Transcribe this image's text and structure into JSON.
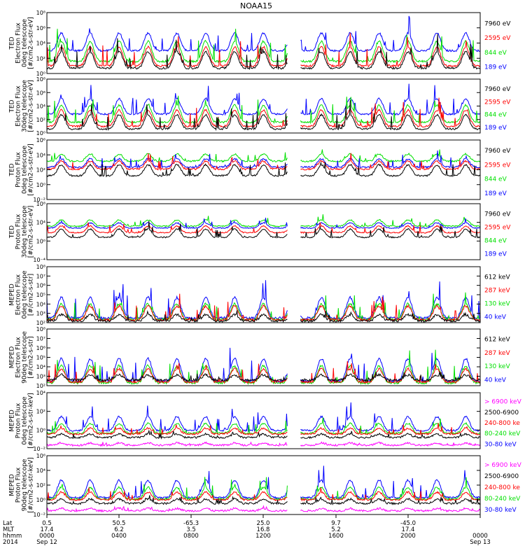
{
  "title": "NOAA15",
  "colors": {
    "black": "#000000",
    "red": "#ff0000",
    "green": "#00e000",
    "blue": "#0000ff",
    "magenta": "#ff00ff"
  },
  "x_axis": {
    "row_labels": [
      "Lat",
      "MLT",
      "hhmm",
      "2014"
    ],
    "ticks": [
      {
        "lat": "0.5",
        "mlt": "17.4",
        "time": "0000",
        "date": "Sep 12"
      },
      {
        "lat": "50.5",
        "mlt": "6.2",
        "time": "0400",
        "date": ""
      },
      {
        "lat": "-65.3",
        "mlt": "3.5",
        "time": "0800",
        "date": ""
      },
      {
        "lat": "25.0",
        "mlt": "16.8",
        "time": "1200",
        "date": ""
      },
      {
        "lat": "9.7",
        "mlt": "5.2",
        "time": "1600",
        "date": ""
      },
      {
        "lat": "-45.0",
        "mlt": "17.4",
        "time": "2000",
        "date": ""
      },
      {
        "lat": "",
        "mlt": "",
        "time": "0000",
        "date": "Sep 13"
      }
    ]
  },
  "chart_data": [
    {
      "type": "line",
      "ylabel": [
        "TED",
        "Electron Flux",
        "0deg telescope",
        "[#/cm2-s-str-eV]"
      ],
      "ylim": [
        1,
        100000000
      ],
      "log": true,
      "ylim_exponents": [
        0,
        8
      ],
      "yticks": [
        "10⁸",
        "10⁶",
        "10⁴",
        "10²",
        "10⁰"
      ],
      "legend": [
        {
          "label": "7960 eV",
          "color": "black"
        },
        {
          "label": "2595 eV",
          "color": "red"
        },
        {
          "label": "844 eV",
          "color": "green"
        },
        {
          "label": "189 eV",
          "color": "blue"
        }
      ],
      "baselines": [
        {
          "color": "blue",
          "level": 3.0
        },
        {
          "color": "green",
          "level": 1.6
        },
        {
          "color": "red",
          "level": 1.0
        },
        {
          "color": "black",
          "level": 0.7
        }
      ],
      "peaks": [
        {
          "color": "blue",
          "level": 7.2
        },
        {
          "color": "green",
          "level": 6.4
        },
        {
          "color": "red",
          "level": 5.5
        },
        {
          "color": "black",
          "level": 4.6
        }
      ]
    },
    {
      "type": "line",
      "ylabel": [
        "TED",
        "Electron Flux",
        "30deg telescope",
        "[#/cm2-s-str-eV]"
      ],
      "ylim": [
        1,
        100000000
      ],
      "log": true,
      "ylim_exponents": [
        0,
        8
      ],
      "yticks": [
        "10⁸",
        "10⁶",
        "10⁴",
        "10²",
        "10⁰"
      ],
      "legend": [
        {
          "label": "7960 eV",
          "color": "black"
        },
        {
          "label": "2595 eV",
          "color": "red"
        },
        {
          "label": "844 eV",
          "color": "green"
        },
        {
          "label": "189 eV",
          "color": "blue"
        }
      ],
      "baselines": [
        {
          "color": "blue",
          "level": 2.8
        },
        {
          "color": "green",
          "level": 1.6
        },
        {
          "color": "red",
          "level": 1.0
        },
        {
          "color": "black",
          "level": 0.6
        }
      ],
      "peaks": [
        {
          "color": "blue",
          "level": 7.0
        },
        {
          "color": "green",
          "level": 6.2
        },
        {
          "color": "red",
          "level": 5.4
        },
        {
          "color": "black",
          "level": 4.4
        }
      ]
    },
    {
      "type": "line",
      "ylabel": [
        "TED",
        "Proton Flux",
        "0deg telescope",
        "[#/cm2-s-str-eV]"
      ],
      "ylim": [
        0.001,
        1000000
      ],
      "log": true,
      "ylim_exponents": [
        -3,
        6
      ],
      "yticks": [
        "10⁶",
        "10⁴",
        "10²",
        "10⁰",
        "10⁻²"
      ],
      "legend": [
        {
          "label": "7960 eV",
          "color": "black"
        },
        {
          "label": "2595 eV",
          "color": "red"
        },
        {
          "label": "844 eV",
          "color": "green"
        },
        {
          "label": "189 eV",
          "color": "blue"
        }
      ],
      "baselines": [
        {
          "color": "green",
          "level": 2.8
        },
        {
          "color": "blue",
          "level": 1.9
        },
        {
          "color": "red",
          "level": 1.6
        },
        {
          "color": "black",
          "level": 0.6
        }
      ],
      "peaks": [
        {
          "color": "green",
          "level": 4.8
        },
        {
          "color": "blue",
          "level": 4.2
        },
        {
          "color": "red",
          "level": 3.8
        },
        {
          "color": "black",
          "level": 3.6
        }
      ]
    },
    {
      "type": "line",
      "ylabel": [
        "TED",
        "Proton Flux",
        "30deg telescope",
        "[#/cm2-s-str-eV]"
      ],
      "ylim": [
        0.0001,
        100000000
      ],
      "log": true,
      "ylim_exponents": [
        -4,
        8
      ],
      "yticks": [
        "10⁸",
        "10⁴",
        "10⁰",
        "10⁻⁴"
      ],
      "legend": [
        {
          "label": "7960 eV",
          "color": "black"
        },
        {
          "label": "2595 eV",
          "color": "red"
        },
        {
          "label": "844 eV",
          "color": "green"
        },
        {
          "label": "189 eV",
          "color": "blue"
        }
      ],
      "baselines": [
        {
          "color": "green",
          "level": 3.2
        },
        {
          "color": "blue",
          "level": 2.8
        },
        {
          "color": "red",
          "level": 1.8
        },
        {
          "color": "black",
          "level": 0.8
        }
      ],
      "peaks": [
        {
          "color": "green",
          "level": 5.6
        },
        {
          "color": "blue",
          "level": 4.8
        },
        {
          "color": "red",
          "level": 4.4
        },
        {
          "color": "black",
          "level": 4.0
        }
      ]
    },
    {
      "type": "line",
      "ylabel": [
        "MEPED",
        "Electron Flux",
        "0deg telescope",
        "[#/cm2-s-str]"
      ],
      "ylim": [
        100,
        100000000
      ],
      "log": true,
      "ylim_exponents": [
        2,
        8
      ],
      "yticks": [
        "10⁸",
        "10⁷",
        "10⁶",
        "10⁵",
        "10⁴",
        "10³",
        "10²"
      ],
      "legend": [
        {
          "label": "612 keV",
          "color": "black"
        },
        {
          "label": "287 keV",
          "color": "red"
        },
        {
          "label": "130 keV",
          "color": "green"
        },
        {
          "label": "40 keV",
          "color": "blue"
        }
      ],
      "baselines": [
        {
          "color": "blue",
          "level": 2.5
        },
        {
          "color": "green",
          "level": 2.35
        },
        {
          "color": "red",
          "level": 2.3
        },
        {
          "color": "black",
          "level": 2.2
        }
      ],
      "peaks": [
        {
          "color": "blue",
          "level": 6.5
        },
        {
          "color": "green",
          "level": 5.4
        },
        {
          "color": "red",
          "level": 5.0
        },
        {
          "color": "black",
          "level": 3.4
        }
      ]
    },
    {
      "type": "line",
      "ylabel": [
        "MEPED",
        "Electron Flux",
        "90deg telescope",
        "[#/cm2-s-str]"
      ],
      "ylim": [
        100,
        100000000
      ],
      "log": true,
      "ylim_exponents": [
        2,
        8
      ],
      "yticks": [
        "10⁸",
        "10⁷",
        "10⁶",
        "10⁵",
        "10⁴",
        "10³",
        "10²"
      ],
      "legend": [
        {
          "label": "612 keV",
          "color": "black"
        },
        {
          "label": "287 keV",
          "color": "red"
        },
        {
          "label": "130 keV",
          "color": "green"
        },
        {
          "label": "40 keV",
          "color": "blue"
        }
      ],
      "baselines": [
        {
          "color": "blue",
          "level": 2.5
        },
        {
          "color": "green",
          "level": 2.3
        },
        {
          "color": "red",
          "level": 2.4
        },
        {
          "color": "black",
          "level": 2.6
        }
      ],
      "peaks": [
        {
          "color": "blue",
          "level": 6.8
        },
        {
          "color": "green",
          "level": 5.6
        },
        {
          "color": "red",
          "level": 4.9
        },
        {
          "color": "black",
          "level": 3.6
        }
      ]
    },
    {
      "type": "line",
      "ylabel": [
        "MEPED",
        "Proton Flux",
        "0deg telescope",
        "[#/cm2-s-str-keV]"
      ],
      "ylim": [
        0.01,
        1000000
      ],
      "log": true,
      "ylim_exponents": [
        -2,
        6
      ],
      "yticks": [
        "10⁴",
        "10²",
        "10⁰",
        "10⁻²"
      ],
      "legend": [
        {
          "label": "> 6900 keV",
          "color": "magenta"
        },
        {
          "label": "2500-6900",
          "color": "black"
        },
        {
          "label": "240-800 ke",
          "color": "red"
        },
        {
          "label": "80-240 keV",
          "color": "green"
        },
        {
          "label": "30-80 keV",
          "color": "blue"
        }
      ],
      "baselines": [
        {
          "color": "blue",
          "level": 0.6
        },
        {
          "color": "green",
          "level": 0.2
        },
        {
          "color": "red",
          "level": 0.1
        },
        {
          "color": "black",
          "level": -0.4
        },
        {
          "color": "magenta",
          "level": -1.5
        }
      ],
      "peaks": [
        {
          "color": "blue",
          "level": 4.2
        },
        {
          "color": "green",
          "level": 2.8
        },
        {
          "color": "red",
          "level": 1.6
        },
        {
          "color": "black",
          "level": 0.5
        },
        {
          "color": "magenta",
          "level": -0.9
        }
      ]
    },
    {
      "type": "line",
      "ylabel": [
        "MEPED",
        "Proton Flux",
        "90deg telescope",
        "[#/cm2-s-str-keV]"
      ],
      "ylim": [
        0.01,
        1000000
      ],
      "log": true,
      "ylim_exponents": [
        -2,
        6
      ],
      "yticks": [
        "10⁶",
        "10⁴",
        "10²",
        "10⁰",
        "10⁻²"
      ],
      "legend": [
        {
          "label": "> 6900 keV",
          "color": "magenta"
        },
        {
          "label": "2500-6900",
          "color": "black"
        },
        {
          "label": "240-800 ke",
          "color": "red"
        },
        {
          "label": "80-240 keV",
          "color": "green"
        },
        {
          "label": "30-80 keV",
          "color": "blue"
        }
      ],
      "baselines": [
        {
          "color": "blue",
          "level": 0.3
        },
        {
          "color": "green",
          "level": 0.1
        },
        {
          "color": "red",
          "level": 0.0
        },
        {
          "color": "black",
          "level": -0.5
        },
        {
          "color": "magenta",
          "level": -1.5
        }
      ],
      "peaks": [
        {
          "color": "blue",
          "level": 4.6
        },
        {
          "color": "green",
          "level": 3.0
        },
        {
          "color": "red",
          "level": 1.9
        },
        {
          "color": "black",
          "level": 0.6
        },
        {
          "color": "magenta",
          "level": -0.9
        }
      ]
    }
  ]
}
